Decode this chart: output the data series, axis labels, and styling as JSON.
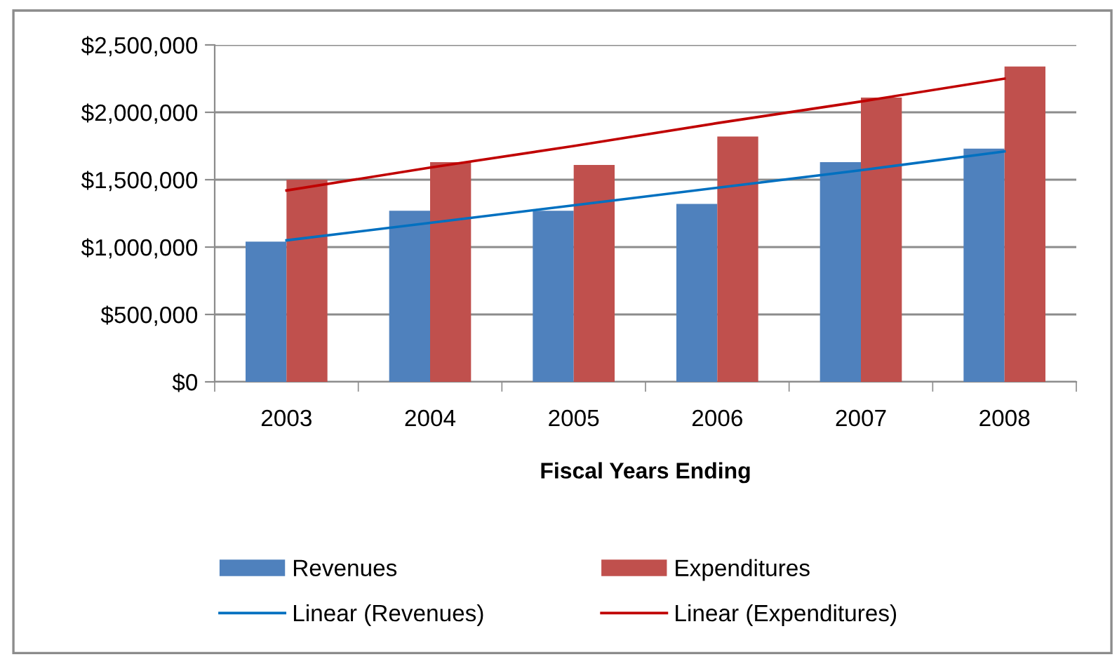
{
  "chart_data": {
    "type": "bar",
    "xlabel": "Fiscal Years Ending",
    "categories": [
      "2003",
      "2004",
      "2005",
      "2006",
      "2007",
      "2008"
    ],
    "series": [
      {
        "name": "Revenues",
        "color": "#4f81bd",
        "values": [
          1040000,
          1270000,
          1270000,
          1320000,
          1630000,
          1730000
        ]
      },
      {
        "name": "Expenditures",
        "color": "#c0504d",
        "values": [
          1500000,
          1630000,
          1610000,
          1820000,
          2110000,
          2340000
        ]
      },
      {
        "name": "Linear (Revenues)",
        "type": "line",
        "color": "#0070c0",
        "values": [
          1050000,
          1180000,
          1310000,
          1440000,
          1570000,
          1710000
        ]
      },
      {
        "name": "Linear (Expenditures)",
        "type": "line",
        "color": "#c00000",
        "values": [
          1420000,
          1590000,
          1750000,
          1920000,
          2080000,
          2250000
        ]
      }
    ],
    "ylim": [
      0,
      2500000
    ],
    "yticks": [
      {
        "value": 0,
        "label": "$0"
      },
      {
        "value": 500000,
        "label": "$500,000"
      },
      {
        "value": 1000000,
        "label": "$1,000,000"
      },
      {
        "value": 1500000,
        "label": "$1,500,000"
      },
      {
        "value": 2000000,
        "label": "$2,000,000"
      },
      {
        "value": 2500000,
        "label": "$2,500,000"
      }
    ],
    "grid": "y",
    "legend": "bottom"
  }
}
